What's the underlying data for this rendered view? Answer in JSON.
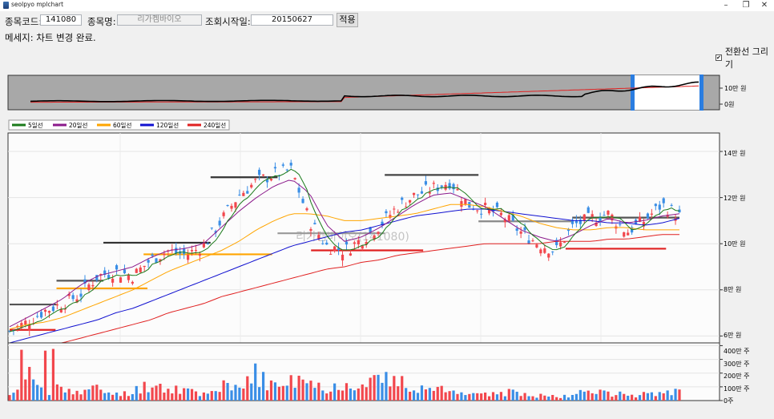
{
  "window": {
    "title": "seolpyo mplchart",
    "minimize": "–",
    "maximize": "❐",
    "close": "✕"
  },
  "toolbar": {
    "code_label": "종목코드:",
    "code_value": "141080",
    "name_label": "종목명:",
    "name_value": "리가켐바이오",
    "date_label": "조회시작일:",
    "date_value": "20150627",
    "apply_label": "적용"
  },
  "message": "메세지: 차트 변경 완료.",
  "checkbox": {
    "label": "전환선 그리기",
    "checked": true
  },
  "overview_axis": [
    "10만 원",
    "0원"
  ],
  "legend": [
    "5일선",
    "20일선",
    "60일선",
    "120일선",
    "240일선"
  ],
  "watermark": "리가켐바이오(141080)",
  "price_axis": [
    "14만 원",
    "12만 원",
    "10만 원",
    "8만 원",
    "6만 원"
  ],
  "volume_axis": [
    "400만 주",
    "300만 주",
    "200만 주",
    "100만 주",
    "0주"
  ],
  "colors": {
    "up": "#f2474d",
    "down": "#3a8ee6",
    "ma5": "#1a7a1a",
    "ma20": "#8b1a8b",
    "ma60": "#ffa500",
    "ma120": "#1010d0",
    "ma240": "#e02020",
    "selector": "#2a7de1"
  },
  "chart_data": {
    "type": "candlestick",
    "series": [
      {
        "name": "5일선",
        "color": "#1a7a1a"
      },
      {
        "name": "20일선",
        "color": "#8b1a8b"
      },
      {
        "name": "60일선",
        "color": "#ffa500"
      },
      {
        "name": "120일선",
        "color": "#1010d0"
      },
      {
        "name": "240일선",
        "color": "#e02020"
      }
    ],
    "close_trend": [
      62000,
      66000,
      71000,
      74000,
      78000,
      86000,
      88000,
      86000,
      93000,
      97000,
      95000,
      99000,
      110000,
      121000,
      127000,
      130000,
      132000,
      110000,
      99000,
      97000,
      102000,
      108000,
      116000,
      121000,
      124000,
      127000,
      117000,
      115000,
      112000,
      105000,
      100000,
      97000,
      108000,
      111000,
      113000,
      105000,
      110000,
      117000,
      112000
    ],
    "ma_levels": {
      "ma20": [
        64000,
        68000,
        72000,
        76000,
        82000,
        86000,
        88000,
        90000,
        94000,
        97000,
        98000,
        100000,
        107000,
        114000,
        120000,
        125000,
        128000,
        122000,
        108000,
        101000,
        103000,
        107000,
        112000,
        117000,
        121000,
        122000,
        119000,
        116000,
        111000,
        106000,
        103000,
        101000,
        104000,
        108000,
        111000,
        109000,
        110000,
        112000,
        113000
      ],
      "ma60": [
        63000,
        65000,
        66000,
        68000,
        71000,
        74000,
        77000,
        80000,
        84000,
        88000,
        91000,
        94000,
        97000,
        101000,
        106000,
        110000,
        113000,
        113000,
        112000,
        110000,
        110000,
        111000,
        112000,
        113000,
        115000,
        117000,
        117000,
        116000,
        114000,
        112000,
        109000,
        107000,
        106000,
        106000,
        107000,
        107000,
        106000,
        106000,
        106000
      ],
      "ma120": [
        57000,
        59000,
        61000,
        63000,
        65000,
        67000,
        70000,
        72000,
        75000,
        78000,
        81000,
        84000,
        87000,
        90000,
        93000,
        96000,
        99000,
        101000,
        103000,
        105000,
        106000,
        108000,
        110000,
        112000,
        113000,
        114000,
        115000,
        115000,
        114000,
        113000,
        112000,
        111000,
        110000,
        110000,
        109000,
        109000,
        108000,
        109000,
        111000
      ],
      "ma240": [
        52000,
        54000,
        56000,
        57000,
        59000,
        61000,
        63000,
        65000,
        67000,
        70000,
        72000,
        74000,
        77000,
        79000,
        81000,
        83000,
        85000,
        87000,
        89000,
        90000,
        92000,
        93000,
        95000,
        96000,
        97000,
        98000,
        99000,
        100000,
        100000,
        100000,
        100000,
        101000,
        101000,
        101000,
        102000,
        102000,
        103000,
        104000,
        104000
      ]
    },
    "yrange": [
      57000,
      148000
    ],
    "volume_trend": [
      0.35,
      2.0,
      0.6,
      1.2,
      0.5,
      0.9,
      0.4,
      0.7,
      1.2,
      0.9,
      0.8,
      0.5,
      1.1,
      0.7,
      1.8,
      1.0,
      1.4,
      1.2,
      0.9,
      1.1,
      1.6,
      1.5,
      1.3,
      1.0,
      0.9,
      0.6,
      0.7,
      0.4,
      0.6,
      0.5,
      0.4,
      0.3,
      0.5,
      0.6,
      0.6,
      0.4,
      0.5,
      0.7,
      0.6
    ],
    "volume_range": [
      0,
      4200000
    ]
  }
}
